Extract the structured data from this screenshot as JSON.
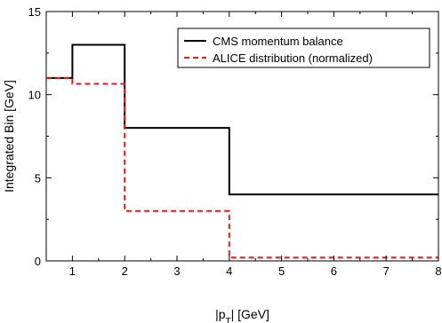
{
  "chart_data": {
    "type": "line",
    "step": true,
    "xlabel_main": "|p",
    "xlabel_sub": "T",
    "xlabel_rest": "| [GeV]",
    "ylabel": "Integrated Bin [GeV]",
    "xlim": [
      0.5,
      8
    ],
    "ylim": [
      0,
      15
    ],
    "xticks": [
      1,
      2,
      3,
      4,
      5,
      6,
      7,
      8
    ],
    "yticks": [
      0,
      5,
      10,
      15
    ],
    "legend_position": "top-right",
    "series": [
      {
        "name": "CMS momentum balance",
        "color": "#000000",
        "dash": "solid",
        "bins": [
          {
            "x0": 0.5,
            "x1": 1,
            "y": 11
          },
          {
            "x0": 1,
            "x1": 2,
            "y": 13
          },
          {
            "x0": 2,
            "x1": 4,
            "y": 8
          },
          {
            "x0": 4,
            "x1": 8,
            "y": 4
          }
        ]
      },
      {
        "name": "ALICE distribution (normalized)",
        "color": "#e41a1c",
        "dash": "dashed",
        "bins": [
          {
            "x0": 0.5,
            "x1": 1,
            "y": 11
          },
          {
            "x0": 1,
            "x1": 2,
            "y": 10.65
          },
          {
            "x0": 2,
            "x1": 4,
            "y": 3
          },
          {
            "x0": 4,
            "x1": 8,
            "y": 0.2
          }
        ]
      }
    ]
  }
}
